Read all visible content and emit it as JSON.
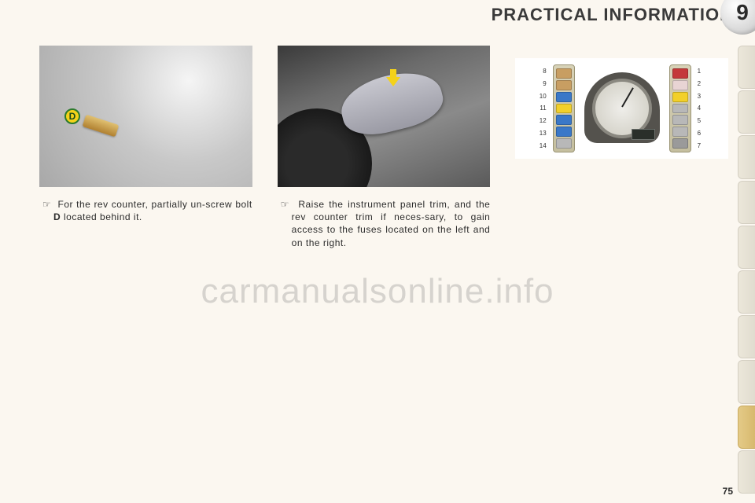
{
  "header": {
    "title": "PRACTICAL INFORMATION",
    "chapter_number": "9"
  },
  "side_tabs": {
    "count": 10,
    "active_index": 8,
    "inactive_bg": "#ece7da",
    "active_bg": "#e4ca87"
  },
  "column1": {
    "marker_label": "D",
    "caption_prefix": "☞",
    "caption_before_bold": "For the rev counter, partially un-screw bolt ",
    "caption_bold": "D",
    "caption_after_bold": " located behind it."
  },
  "column2": {
    "caption_prefix": "☞",
    "caption_text": "Raise the instrument panel trim, and the rev counter trim if neces-sary, to gain access to the fuses located on the left and on the right."
  },
  "fuse_diagram": {
    "left_numbers": [
      "8",
      "9",
      "10",
      "11",
      "12",
      "13",
      "14"
    ],
    "right_numbers": [
      "1",
      "2",
      "3",
      "4",
      "5",
      "6",
      "7"
    ],
    "left_colors": [
      "#c89e62",
      "#c89e62",
      "#3a78c8",
      "#f2d02a",
      "#3a78c8",
      "#3a78c8",
      "#b8b8b8"
    ],
    "right_colors": [
      "#c43a3a",
      "#e8d4d4",
      "#f2d02a",
      "#b8b8b8",
      "#b8b8b8",
      "#b8b8b8",
      "#9a9a9a"
    ],
    "panel_bg": "#d7d2b8",
    "gauge_body_color": "#54524d"
  },
  "watermark": "carmanualsonline.info",
  "page_number": "75",
  "colors": {
    "page_bg": "#fbf7f0",
    "text": "#2b2b2b",
    "marker_fill": "#f4d21a",
    "marker_border": "#2b7a2b"
  }
}
